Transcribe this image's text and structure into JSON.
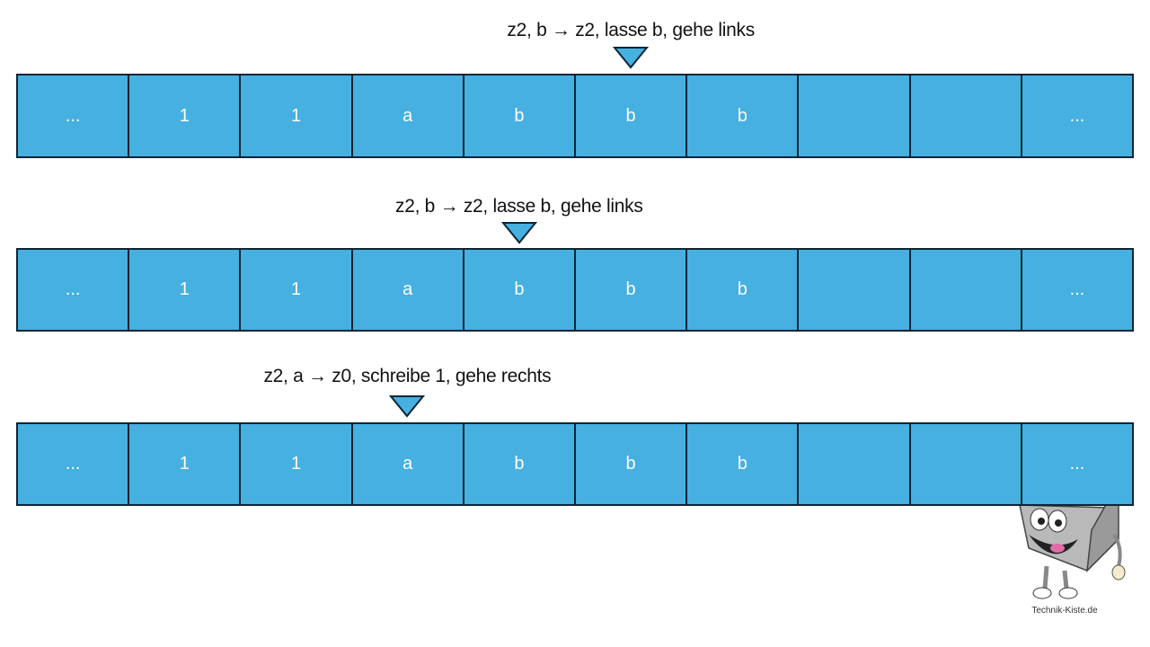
{
  "steps": [
    {
      "label": "z2, b → z2, lasse b, gehe links",
      "head_index": 5,
      "cells": [
        "...",
        "1",
        "1",
        "a",
        "b",
        "b",
        "b",
        "",
        "",
        "..."
      ]
    },
    {
      "label": "z2, b → z2, lasse b, gehe links",
      "head_index": 4,
      "cells": [
        "...",
        "1",
        "1",
        "a",
        "b",
        "b",
        "b",
        "",
        "",
        "..."
      ]
    },
    {
      "label": "z2, a → z0, schreibe 1, gehe rechts",
      "head_index": 3,
      "cells": [
        "...",
        "1",
        "1",
        "a",
        "b",
        "b",
        "b",
        "",
        "",
        "..."
      ]
    }
  ],
  "colors": {
    "cell": "#46b0e0",
    "border": "#0d2535",
    "text": "#ffffff"
  },
  "logo": {
    "text": "Technik-Kiste.de",
    "icon": "toolbox-mascot-icon"
  }
}
